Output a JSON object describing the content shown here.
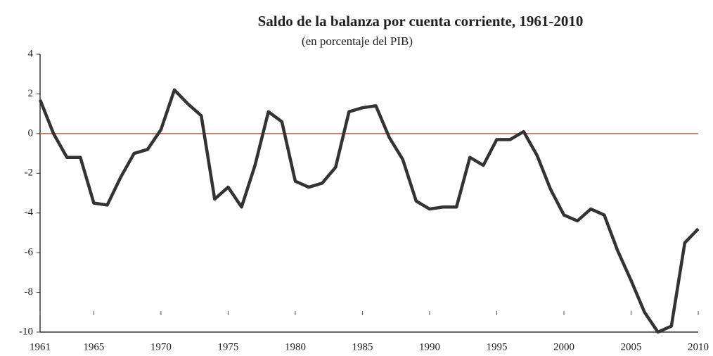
{
  "chart_data": {
    "type": "line",
    "title": "Saldo de la balanza por cuenta corriente, 1961-2010",
    "subtitle": "(en porcentaje del PIB)",
    "x": [
      1961,
      1962,
      1963,
      1964,
      1965,
      1966,
      1967,
      1968,
      1969,
      1970,
      1971,
      1972,
      1973,
      1974,
      1975,
      1976,
      1977,
      1978,
      1979,
      1980,
      1981,
      1982,
      1983,
      1984,
      1985,
      1986,
      1987,
      1988,
      1989,
      1990,
      1991,
      1992,
      1993,
      1994,
      1995,
      1996,
      1997,
      1998,
      1999,
      2000,
      2001,
      2002,
      2003,
      2004,
      2005,
      2006,
      2007,
      2008,
      2009,
      2010
    ],
    "series": [
      {
        "color": "#333333",
        "values": [
          1.7,
          0.0,
          -1.2,
          -1.2,
          -3.5,
          -3.6,
          -2.2,
          -1.0,
          -0.8,
          0.2,
          2.2,
          1.5,
          0.9,
          -3.3,
          -2.7,
          -3.7,
          -1.6,
          1.1,
          0.6,
          -2.4,
          -2.7,
          -2.5,
          -1.7,
          1.1,
          1.3,
          1.4,
          -0.2,
          -1.3,
          -3.4,
          -3.8,
          -3.7,
          -3.7,
          -1.2,
          -1.6,
          -0.3,
          -0.3,
          0.1,
          -1.1,
          -2.8,
          -4.1,
          -4.4,
          -3.8,
          -4.1,
          -5.9,
          -7.4,
          -9.0,
          -10.0,
          -9.7,
          -5.5,
          -4.8
        ]
      }
    ],
    "xlim": [
      1961,
      2010
    ],
    "xticks": [
      1961,
      1965,
      1970,
      1975,
      1980,
      1985,
      1990,
      1995,
      2000,
      2005,
      2010
    ],
    "ylim": [
      -10,
      4
    ],
    "yticks": [
      -10,
      -8,
      -6,
      -4,
      -2,
      0,
      2,
      4
    ],
    "reference_line": 0,
    "reference_color": "#c0392b"
  }
}
